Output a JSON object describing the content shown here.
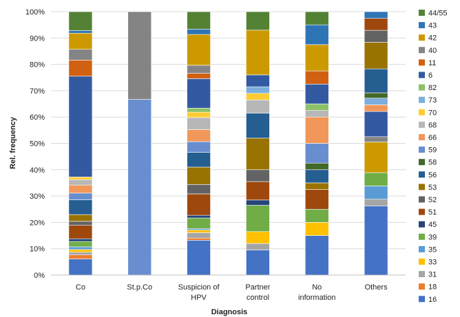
{
  "chart_data": {
    "type": "bar",
    "stacked": true,
    "xlabel": "Diagnosis",
    "ylabel": "Rel. frequency",
    "ylim": [
      0,
      100
    ],
    "yticks": [
      "0%",
      "10%",
      "20%",
      "30%",
      "40%",
      "50%",
      "60%",
      "70%",
      "80%",
      "90%",
      "100%"
    ],
    "categories": [
      [
        "Co"
      ],
      [
        "St.p.Co"
      ],
      [
        "Suspicion of",
        "HPV"
      ],
      [
        "Partner",
        "control"
      ],
      [
        "No",
        "information"
      ],
      [
        "Others"
      ]
    ],
    "legend_position": "right",
    "series": [
      {
        "name": "16",
        "color": "#4472C4",
        "values": [
          6,
          0,
          13,
          9.5,
          15,
          26
        ]
      },
      {
        "name": "18",
        "color": "#ED7D31",
        "values": [
          1.5,
          0,
          0.8,
          0,
          0,
          0
        ]
      },
      {
        "name": "31",
        "color": "#A5A5A5",
        "values": [
          1,
          0,
          2,
          2.5,
          0,
          2.5
        ]
      },
      {
        "name": "33",
        "color": "#FFC000",
        "values": [
          1,
          0,
          1,
          4.5,
          5,
          0
        ]
      },
      {
        "name": "35",
        "color": "#5B9BD5",
        "values": [
          1,
          0,
          0.5,
          0,
          0,
          5
        ]
      },
      {
        "name": "39",
        "color": "#70AD47",
        "values": [
          2,
          0,
          4,
          10,
          5,
          5
        ]
      },
      {
        "name": "45",
        "color": "#264478",
        "values": [
          1,
          0,
          1,
          2,
          0,
          0
        ]
      },
      {
        "name": "51",
        "color": "#9E480E",
        "values": [
          5,
          0,
          8,
          7,
          7.5,
          0
        ]
      },
      {
        "name": "52",
        "color": "#636363",
        "values": [
          1.5,
          0,
          3.5,
          4.5,
          0,
          0
        ]
      },
      {
        "name": "53",
        "color": "#997300",
        "values": [
          2.5,
          0,
          6.5,
          12,
          2.5,
          0
        ]
      },
      {
        "name": "56",
        "color": "#255E91",
        "values": [
          5.5,
          0,
          5.5,
          9.5,
          5,
          0
        ]
      },
      {
        "name": "58",
        "color": "#43682B",
        "values": [
          0,
          0,
          0,
          0,
          2.5,
          0
        ]
      },
      {
        "name": "59",
        "color": "#698ED0",
        "values": [
          2.5,
          0,
          4,
          0,
          7.5,
          0
        ]
      },
      {
        "name": "66",
        "color": "#F1975A",
        "values": [
          3,
          0,
          4.5,
          0,
          10,
          0
        ]
      },
      {
        "name": "68",
        "color": "#B7B7B7",
        "values": [
          2,
          0,
          4.5,
          5,
          2.5,
          0
        ]
      },
      {
        "name": "70",
        "color": "#FFCD33",
        "values": [
          1,
          0,
          2,
          2.5,
          0,
          0
        ]
      },
      {
        "name": "73",
        "color": "#7CAFDD",
        "values": [
          0,
          0,
          0,
          2.5,
          0,
          0
        ]
      },
      {
        "name": "82",
        "color": "#8CC168",
        "values": [
          0,
          0,
          1.5,
          0,
          2.5,
          0
        ]
      },
      {
        "name": "6",
        "color": "#335AA1",
        "values": [
          37.5,
          0,
          11,
          4.5,
          7.5,
          0
        ]
      },
      {
        "name": "11",
        "color": "#D26012",
        "values": [
          6,
          0,
          2,
          0,
          5,
          0
        ]
      },
      {
        "name": "40",
        "color": "#848484",
        "values": [
          4,
          0,
          3,
          0,
          0,
          0
        ]
      },
      {
        "name": "42",
        "color": "#CC9A00",
        "values": [
          6,
          0,
          11.5,
          17,
          10,
          0
        ]
      },
      {
        "name": "43",
        "color": "#2E75B6",
        "values": [
          1,
          0,
          2,
          0,
          7.5,
          0
        ]
      },
      {
        "name": "44/55",
        "color": "#548235",
        "values": [
          7,
          0,
          6.5,
          7,
          5,
          0
        ]
      }
    ],
    "series_extra": {
      "St.p.Co": [
        {
          "name": "59",
          "value": 66.7
        },
        {
          "name": "40",
          "value": 33.3
        }
      ],
      "Others": [
        {
          "name": "42",
          "value": 11.5
        },
        {
          "name": "40",
          "value": 2
        },
        {
          "name": "6",
          "value": 9.5
        },
        {
          "name": "66",
          "value": 2.5
        },
        {
          "name": "73",
          "value": 2.5
        },
        {
          "name": "58",
          "value": 2
        },
        {
          "name": "56",
          "value": 9
        },
        {
          "name": "53",
          "value": 10
        },
        {
          "name": "52",
          "value": 4.5
        },
        {
          "name": "51",
          "value": 4.5
        },
        {
          "name": "43",
          "value": 2.5
        }
      ]
    }
  }
}
